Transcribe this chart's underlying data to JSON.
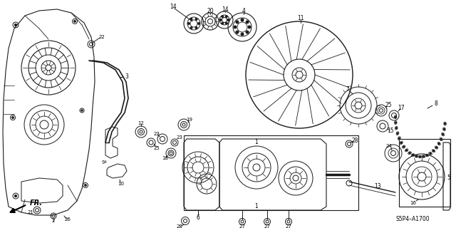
{
  "bg_color": "#ffffff",
  "diagram_ref": "S5P4–A1700",
  "fr_label": "FR.",
  "lw": 0.7,
  "ec": "#1a1a1a"
}
